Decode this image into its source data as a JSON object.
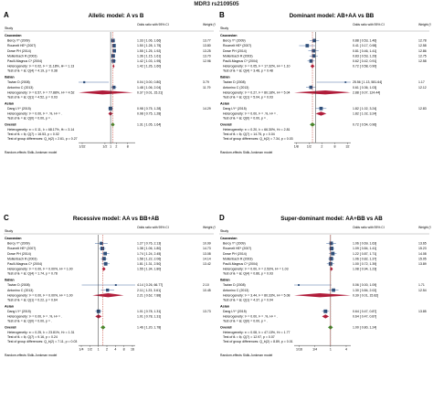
{
  "figure_title": "MDR3 rs2109505",
  "colors": {
    "square": "#2f4f7a",
    "ci": "#4a6fa5",
    "diamond_sub": "#b01c3a",
    "diamond_overall": "#3e8e2c",
    "null_line": "#333333",
    "ref_line": "#c0392b"
  },
  "chart_data": [
    {
      "letter": "A",
      "type": "forest",
      "title": "Allelic model: A vs B",
      "col_study": "Study",
      "col_effect": "Odds ratio with 95% CI",
      "col_weight": "Weight (%)",
      "ticks": [
        "1/32",
        "1/2",
        "1",
        "2",
        "8"
      ],
      "tick_values": [
        0.03125,
        0.5,
        1,
        2,
        8
      ],
      "xlim": [
        0.02,
        20
      ],
      "groups": [
        {
          "name": "Caucasian",
          "studies": [
            {
              "label": "Bercy Y* (2009)",
              "or": 1.33,
              "lo": 1.06,
              "hi": 1.66,
              "ci_text": "1.33 [ 1.06, 1.66]",
              "w": "13.77"
            },
            {
              "label": "Roumelt HE* (2007)",
              "or": 1.5,
              "lo": 1.28,
              "hi": 1.75,
              "ci_text": "1.50 [ 1.28, 1.75]",
              "w": "13.80"
            },
            {
              "label": "Dowe PH (2014)",
              "or": 1.55,
              "lo": 1.25,
              "hi": 1.92,
              "ci_text": "1.55 [ 1.25, 1.92]",
              "w": "13.25"
            },
            {
              "label": "Mollenbach R (2003)",
              "or": 1.36,
              "lo": 1.15,
              "hi": 1.61,
              "ci_text": "1.36 [ 1.15, 1.61]",
              "w": "13.70"
            },
            {
              "label": "Paulli-Magnus C* (2004)",
              "or": 1.42,
              "lo": 1.03,
              "hi": 1.95,
              "ci_text": "1.42 [ 1.03, 1.95]",
              "w": "12.96"
            }
          ],
          "summary": {
            "label": "Heterogeneity: τ² = 0.02, I² = 11.18%, H² = 1.13",
            "or": 1.42,
            "lo": 1.26,
            "hi": 1.6,
            "ci_text": "1.42 [ 1.26, 1.60]"
          },
          "test": "Test of θᵢ = θⱼ: Q(4) = 4.19, p = 0.38"
        },
        {
          "name": "Italian",
          "studies": [
            {
              "label": "Tavian D (2008)",
              "or": 0.04,
              "lo": 0.0,
              "hi": 0.8,
              "ci_text": "0.04 [ 0.00, 0.80]",
              "w": "3.79"
            },
            {
              "label": "Antonino C (2013)",
              "or": 1.48,
              "lo": 1.06,
              "hi": 2.04,
              "ci_text": "1.48 [ 1.06, 2.04]",
              "w": "11.79"
            }
          ],
          "summary": {
            "label": "Heterogeneity: τ² = 6.57, I² = 77.88%, H² = 4.52",
            "or": 0.37,
            "lo": 0.01,
            "hi": 15.21,
            "ci_text": "0.37 [ 0.01, 15.21]"
          },
          "test": "Test of θᵢ = θⱼ: Q(1) = 4.52, p = 0.03"
        },
        {
          "name": "Asian",
          "studies": [
            {
              "label": "Dang LY* (2015)",
              "or": 0.98,
              "lo": 0.75,
              "hi": 1.28,
              "ci_text": "0.98 [ 0.75, 1.28]",
              "w": "14.29"
            }
          ],
          "summary": {
            "label": "Heterogeneity: τ² = 0.00, I² = .%, H² = .",
            "or": 0.98,
            "lo": 0.75,
            "hi": 1.28,
            "ci_text": "0.98 [ 0.75, 1.28]"
          },
          "test": "Test of θᵢ = θⱼ: Q(0) = 0.00, p = ."
        }
      ],
      "overall": {
        "label": "Heterogeneity: τ² = 0.11, I² = 68.17%, H² = 3.14",
        "or": 1.31,
        "lo": 1.05,
        "hi": 1.64,
        "ci_text": "1.31 [ 1.05, 1.64]",
        "test": "Test of θᵢ = θⱼ: Q(7) = 16.53, p = 0.02"
      },
      "group_diff": "Test of group differences: Q_b(2) = 2.61, p = 0.27",
      "footer": "Random-effects Sidik-Jonkman model"
    },
    {
      "letter": "B",
      "type": "forest",
      "title": "Dominant model: AB+AA vs BB",
      "col_study": "Study",
      "col_effect": "Odds ratio with 95% CI",
      "col_weight": "Weight (%)",
      "ticks": [
        "1/8",
        "1/2",
        "2",
        "8",
        "32"
      ],
      "tick_values": [
        0.125,
        0.5,
        2,
        8,
        32
      ],
      "xlim": [
        0.1,
        45
      ],
      "groups": [
        {
          "name": "Caucasian",
          "studies": [
            {
              "label": "Bercy Y* (2009)",
              "or": 0.88,
              "lo": 0.53,
              "hi": 1.46,
              "ci_text": "0.88 [ 0.53, 1.46]",
              "w": "12.78"
            },
            {
              "label": "Roumelt HE* (2007)",
              "or": 0.41,
              "lo": 0.17,
              "hi": 0.98,
              "ci_text": "0.41 [ 0.17, 0.98]",
              "w": "12.58"
            },
            {
              "label": "Dowe PH (2014)",
              "or": 0.81,
              "lo": 0.46,
              "hi": 1.41,
              "ci_text": "0.81 [ 0.46, 1.41]",
              "w": "12.86"
            },
            {
              "label": "Mollenbach R (2003)",
              "or": 0.83,
              "lo": 0.53,
              "hi": 1.29,
              "ci_text": "0.83 [ 0.53, 1.29]",
              "w": "12.75"
            },
            {
              "label": "Paulli-Magnus C* (2004)",
              "or": 0.62,
              "lo": 0.42,
              "hi": 0.91,
              "ci_text": "0.62 [ 0.42, 0.91]",
              "w": "12.58"
            }
          ],
          "summary": {
            "label": "Heterogeneity: τ² = 0.05, I² = 17.32%, H² = 1.10",
            "or": 0.72,
            "or_text": "0.72",
            "lo": 0.58,
            "hi": 0.9,
            "ci_text": "0.72 [ 0.58, 0.90]"
          },
          "test": "Test of θᵢ = θⱼ: Q(4) = 3.48, p = 0.48"
        },
        {
          "name": "Italian",
          "studies": [
            {
              "label": "Tavian D (2008)",
              "or": 25.56,
              "lo": 1.13,
              "hi": 581.64,
              "ci_text": "25.56 [ 1.13, 581.64]",
              "w": "1.17"
            },
            {
              "label": "Antonino C (2013)",
              "or": 0.61,
              "lo": 0.36,
              "hi": 1.03,
              "ci_text": "0.61 [ 0.36, 1.03]",
              "w": "12.12"
            }
          ],
          "summary": {
            "label": "Heterogeneity: τ² = 0.27, I² = 80.18%, H² = 5.04",
            "or": 2.88,
            "lo": 0.07,
            "hi": 124.44,
            "ci_text": "2.88 [ 0.07, 124.44]"
          },
          "test": "Test of θᵢ = θⱼ: Q(1) = 5.04, p = 0.03"
        },
        {
          "name": "Asian",
          "studies": [
            {
              "label": "Dang LY* (2015)",
              "or": 1.82,
              "lo": 1.02,
              "hi": 3.24,
              "ci_text": "1.82 [ 1.02, 3.24]",
              "w": "12.83"
            }
          ],
          "summary": {
            "label": "Heterogeneity: τ² = 0.00, I² = .%, H² = .",
            "or": 1.82,
            "lo": 1.02,
            "hi": 3.24,
            "ci_text": "1.82 [ 1.02, 3.24]"
          },
          "test": "Test of θᵢ = θⱼ: Q(0) = 0.00, p = ."
        }
      ],
      "overall": {
        "label": "Heterogeneity: τ² = 0.20, I² = 66.30%, H² = 2.81",
        "or": 0.72,
        "lo": 0.54,
        "hi": 0.96,
        "ci_text": "0.72 [ 0.54, 0.96]",
        "test": "Test of θᵢ = θⱼ: Q(7) = 14.75, p = 0.04"
      },
      "group_diff": "Test of group differences: Q_b(2) = 7.34, p = 0.03",
      "footer": "Random-effects Sidik-Jonkman model"
    },
    {
      "letter": "C",
      "type": "forest",
      "title": "Recessive model: AA vs BB+AB",
      "col_study": "Study",
      "col_effect": "Odds ratio with 95% CI",
      "col_weight": "Weight (%)",
      "ticks": [
        "1/4",
        "1/2",
        "1",
        "2",
        "4",
        "8",
        "16"
      ],
      "tick_values": [
        0.25,
        0.5,
        1,
        2,
        4,
        8,
        16
      ],
      "xlim": [
        0.2,
        20
      ],
      "groups": [
        {
          "name": "Caucasian",
          "studies": [
            {
              "label": "Bercy Y* (2009)",
              "or": 1.27,
              "lo": 0.76,
              "hi": 2.13,
              "ci_text": "1.27 [ 0.76, 2.13]",
              "w": "10.99"
            },
            {
              "label": "Roumelt HE* (2007)",
              "or": 1.38,
              "lo": 1.06,
              "hi": 1.8,
              "ci_text": "1.38 [ 1.06, 1.80]",
              "w": "14.73"
            },
            {
              "label": "Dowe PH (2014)",
              "or": 1.74,
              "lo": 1.24,
              "hi": 2.45,
              "ci_text": "1.74 [ 1.24, 2.45]",
              "w": "13.08"
            },
            {
              "label": "Mollenbach R (2003)",
              "or": 1.58,
              "lo": 1.22,
              "hi": 2.06,
              "ci_text": "1.58 [ 1.22, 2.06]",
              "w": "14.14"
            },
            {
              "label": "Paulli-Magnus C* (2004)",
              "or": 1.81,
              "lo": 1.31,
              "hi": 2.5,
              "ci_text": "1.81 [ 1.31, 2.50]",
              "w": "13.42"
            }
          ],
          "summary": {
            "label": "Heterogeneity: τ² = 0.00, I² = 0.00%, H² = 1.00",
            "or": 1.55,
            "lo": 1.34,
            "hi": 1.8,
            "ci_text": "1.55 [ 1.34, 1.80]"
          },
          "test": "Test of θᵢ = θⱼ: Q(4) = 1.74, p = 0.78"
        },
        {
          "name": "Italian",
          "studies": [
            {
              "label": "Tavian D (2008)",
              "or": 4.14,
              "lo": 0.26,
              "hi": 66.77,
              "ci_text": "4.14 [ 0.26, 66.77]",
              "w": "2.10"
            },
            {
              "label": "Antonino C (2013)",
              "or": 2.11,
              "lo": 1.23,
              "hi": 3.61,
              "ci_text": "2.11 [ 1.23, 3.61]",
              "w": "10.45"
            }
          ],
          "summary": {
            "label": "Heterogeneity: τ² = 0.00, I² = 0.00%, H² = 1.00",
            "or": 2.21,
            "lo": 0.62,
            "hi": 7.88,
            "ci_text": "2.21 [ 0.62, 7.88]"
          },
          "test": "Test of θᵢ = θⱼ: Q(1) = 0.22, p = 0.64"
        },
        {
          "name": "Asian",
          "studies": [
            {
              "label": "Dang LY* (2015)",
              "or": 1.01,
              "lo": 0.78,
              "hi": 1.31,
              "ci_text": "1.01 [ 0.78, 1.31]",
              "w": "13.73"
            }
          ],
          "summary": {
            "label": "Heterogeneity: τ² = 0.00, I² = .%, H² = .",
            "or": 1.01,
            "lo": 0.78,
            "hi": 1.31,
            "ci_text": "1.01 [ 0.78, 1.31]"
          },
          "test": "Test of θᵢ = θⱼ: Q(0) = 0.00, p = ."
        }
      ],
      "overall": {
        "label": "Heterogeneity: τ² = 0.25, I² = 23.81%, H² = 1.31",
        "or": 1.46,
        "lo": 1.2,
        "hi": 1.78,
        "ci_text": "1.46 [ 1.20, 1.78]",
        "test": "Test of θᵢ = θⱼ: Q(7) = 9.16, p = 0.24"
      },
      "group_diff": "Test of group differences: Q_b(2) = 7.11, p = 0.03",
      "footer": "Random-effects Sidik-Jonkman model"
    },
    {
      "letter": "D",
      "type": "forest",
      "title": "Super-dominant model: AA+BB vs AB",
      "col_study": "Study",
      "col_effect": "Odds ratio with 95% CI",
      "col_weight": "Weight (%)",
      "ticks": [
        "1/16",
        "1/4",
        "1",
        "4"
      ],
      "tick_values": [
        0.0625,
        0.25,
        1,
        4
      ],
      "xlim": [
        0.04,
        6
      ],
      "groups": [
        {
          "name": "Caucasian",
          "studies": [
            {
              "label": "Bercy Y* (2009)",
              "or": 1.06,
              "lo": 0.69,
              "hi": 1.63,
              "ci_text": "1.06 [ 0.69, 1.63]",
              "w": "13.65"
            },
            {
              "label": "Roumelt HE* (2007)",
              "or": 1.09,
              "lo": 0.84,
              "hi": 1.41,
              "ci_text": "1.09 [ 0.84, 1.41]",
              "w": "15.23"
            },
            {
              "label": "Dowe PH (2014)",
              "or": 1.22,
              "lo": 0.87,
              "hi": 1.71,
              "ci_text": "1.22 [ 0.87, 1.71]",
              "w": "14.08"
            },
            {
              "label": "Mollenbach R (2003)",
              "or": 1.06,
              "lo": 0.82,
              "hi": 1.37,
              "ci_text": "1.06 [ 0.82, 1.37]",
              "w": "15.05"
            },
            {
              "label": "Paulli-Magnus C* (2004)",
              "or": 1.0,
              "lo": 0.72,
              "hi": 1.39,
              "ci_text": "1.00 [ 0.72, 1.39]",
              "w": "13.89"
            }
          ],
          "summary": {
            "label": "Heterogeneity: τ² = 0.00, I² = 2.53%, H² = 1.03",
            "or": 1.08,
            "lo": 0.94,
            "hi": 1.23,
            "ci_text": "1.08 [ 0.94, 1.23]"
          },
          "test": "Test of θᵢ = θⱼ: Q(4) = 0.86, p = 0.93"
        },
        {
          "name": "Italian",
          "studies": [
            {
              "label": "Tavian D (2008)",
              "or": 0.06,
              "lo": 0.0,
              "hi": 1.09,
              "ci_text": "0.06 [ 0.00, 1.09]",
              "w": "1.71"
            },
            {
              "label": "Antonino C (2013)",
              "or": 1.3,
              "lo": 0.84,
              "hi": 2.02,
              "ci_text": "1.30 [ 0.84, 2.02]",
              "w": "12.54"
            }
          ],
          "summary": {
            "label": "Heterogeneity: τ² = 3.44, I² = 80.33%, H² = 5.08",
            "or": 0.39,
            "lo": 0.01,
            "hi": 15.82,
            "ci_text": "0.39 [ 0.01, 15.82]"
          },
          "test": "Test of θᵢ = θⱼ: Q(1) = 4.37, p = 0.04"
        },
        {
          "name": "Asian",
          "studies": [
            {
              "label": "Dang LY* (2015)",
              "or": 0.64,
              "lo": 0.47,
              "hi": 0.87,
              "ci_text": "0.64 [ 0.47, 0.87]",
              "w": "13.85"
            }
          ],
          "summary": {
            "label": "Heterogeneity: τ² = 0.00, I² = .%, H² = .",
            "or": 0.64,
            "lo": 0.47,
            "hi": 0.87,
            "ci_text": "0.64 [ 0.47, 0.87]"
          },
          "test": "Test of θᵢ = θⱼ: Q(0) = 0.00, p = ."
        }
      ],
      "overall": {
        "label": "Heterogeneity: τ² = 0.08, I² = 47.13%, H² = 1.77",
        "or": 1.0,
        "lo": 0.8,
        "hi": 1.24,
        "ci_text": "1.00 [ 0.80, 1.24]",
        "test": "Test of θᵢ = θⱼ: Q(7) = 12.97, p = 0.07"
      },
      "group_diff": "Test of group differences: Q_b(2) = 8.89, p = 0.01",
      "footer": "Random-effects Sidik-Jonkman model"
    }
  ]
}
